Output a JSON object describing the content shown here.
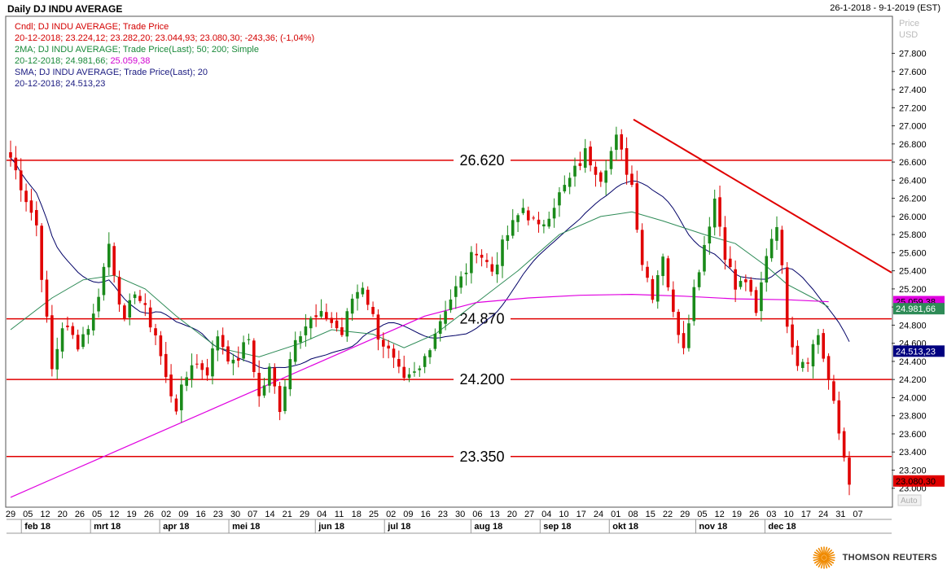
{
  "header": {
    "title": "Daily DJ INDU AVERAGE",
    "date_range": "26-1-2018 - 9-1-2019 (EST)"
  },
  "legend": [
    {
      "text": "Cndl; DJ INDU AVERAGE; Trade Price",
      "color": "#d40000"
    },
    {
      "text": "20-12-2018; 23.224,12; 23.282,20; 23.044,93; 23.080,30; -243,36; (-1,04%)",
      "color": "#d40000"
    },
    {
      "text": "2MA; DJ INDU AVERAGE; Trade Price(Last);  50; 200; Simple",
      "color": "#1a8a3a"
    },
    {
      "text": "20-12-2018; 24.981,66; 25.059,38",
      "color": "#1a8a3a",
      "highlight": "25.059,38",
      "highlight_color": "#d100d1"
    },
    {
      "text": "SMA; DJ INDU AVERAGE; Trade Price(Last);  20",
      "color": "#1a1a80"
    },
    {
      "text": "20-12-2018; 24.513,23",
      "color": "#1a1a80"
    }
  ],
  "axis": {
    "price_label": "Price",
    "currency_label": "USD",
    "auto_label": "Auto"
  },
  "brand": {
    "name": "THOMSON REUTERS"
  },
  "colors": {
    "up": "#1a8a1a",
    "down": "#e00000",
    "sma20": "#000066",
    "ma50": "#2e8b57",
    "ma200": "#e000e0",
    "level": "#e00000"
  },
  "chart_data": {
    "type": "candlestick",
    "title": "Daily DJ INDU AVERAGE",
    "ylim": [
      22800,
      28200
    ],
    "y_ticks": [
      "23.000",
      "23.200",
      "23.400",
      "23.600",
      "23.800",
      "24.000",
      "24.200",
      "24.400",
      "24.600",
      "24.800",
      "25.000",
      "25.200",
      "25.400",
      "25.600",
      "25.800",
      "26.000",
      "26.200",
      "26.400",
      "26.600",
      "26.800",
      "27.000",
      "27.200",
      "27.400",
      "27.600",
      "27.800"
    ],
    "day_labels": [
      "29",
      "05",
      "12",
      "20",
      "26",
      "05",
      "12",
      "19",
      "26",
      "02",
      "09",
      "16",
      "23",
      "30",
      "07",
      "14",
      "21",
      "29",
      "04",
      "11",
      "18",
      "25",
      "02",
      "09",
      "16",
      "23",
      "30",
      "06",
      "13",
      "20",
      "27",
      "04",
      "10",
      "17",
      "24",
      "01",
      "08",
      "15",
      "22",
      "29",
      "05",
      "12",
      "19",
      "26",
      "03",
      "10",
      "17",
      "24",
      "31",
      "07"
    ],
    "month_labels": [
      {
        "label": "feb 18",
        "at": "05"
      },
      {
        "label": "mrt 18",
        "at": "05"
      },
      {
        "label": "apr 18",
        "at": "02"
      },
      {
        "label": "mei 18",
        "at": "30"
      },
      {
        "label": "jun 18",
        "at": "04"
      },
      {
        "label": "jul 18",
        "at": "02"
      },
      {
        "label": "aug 18",
        "at": "30"
      },
      {
        "label": "sep 18",
        "at": "27"
      },
      {
        "label": "okt 18",
        "at": "01"
      },
      {
        "label": "nov 18",
        "at": "29"
      },
      {
        "label": "dec 18",
        "at": "03"
      }
    ],
    "levels": [
      {
        "value": 26620,
        "label": "26.620"
      },
      {
        "value": 24870,
        "label": "24.870"
      },
      {
        "value": 24200,
        "label": "24.200"
      },
      {
        "value": 23350,
        "label": "23.350"
      }
    ],
    "trendline": {
      "from": {
        "x": "2018-09-21",
        "y": 27070
      },
      "to": {
        "x": "2019-01-09",
        "y": 25380
      }
    },
    "last_values": [
      {
        "name": "ma200",
        "label": "25.059,38",
        "value": 25059.38,
        "bg": "#e000e0",
        "fg": "#000000"
      },
      {
        "name": "ma50",
        "label": "24.981,66",
        "value": 24981.66,
        "bg": "#2e8b57",
        "fg": "#ffffff"
      },
      {
        "name": "sma20",
        "label": "24.513,23",
        "value": 24513.23,
        "bg": "#000080",
        "fg": "#ffffff"
      },
      {
        "name": "close",
        "label": "23.080,30",
        "value": 23080.3,
        "bg": "#e00000",
        "fg": "#000000"
      }
    ],
    "anchors": [
      [
        0,
        26650
      ],
      [
        3,
        26200
      ],
      [
        5,
        25900
      ],
      [
        8,
        24300
      ],
      [
        10,
        24800
      ],
      [
        13,
        24600
      ],
      [
        16,
        24900
      ],
      [
        19,
        25700
      ],
      [
        22,
        24800
      ],
      [
        24,
        25200
      ],
      [
        28,
        24700
      ],
      [
        30,
        24200
      ],
      [
        32,
        23900
      ],
      [
        35,
        24400
      ],
      [
        38,
        24300
      ],
      [
        40,
        24700
      ],
      [
        43,
        24350
      ],
      [
        46,
        24650
      ],
      [
        48,
        24000
      ],
      [
        50,
        24300
      ],
      [
        52,
        23900
      ],
      [
        55,
        24700
      ],
      [
        58,
        24850
      ],
      [
        61,
        24900
      ],
      [
        64,
        24700
      ],
      [
        66,
        25100
      ],
      [
        68,
        25250
      ],
      [
        71,
        24700
      ],
      [
        73,
        24500
      ],
      [
        76,
        24150
      ],
      [
        79,
        24300
      ],
      [
        81,
        24600
      ],
      [
        84,
        25000
      ],
      [
        87,
        25300
      ],
      [
        90,
        25650
      ],
      [
        93,
        25400
      ],
      [
        96,
        25800
      ],
      [
        99,
        26100
      ],
      [
        102,
        25850
      ],
      [
        105,
        26150
      ],
      [
        108,
        26400
      ],
      [
        111,
        26700
      ],
      [
        114,
        26450
      ],
      [
        117,
        26850
      ],
      [
        120,
        26350
      ],
      [
        122,
        25500
      ],
      [
        124,
        25150
      ],
      [
        126,
        25600
      ],
      [
        128,
        24900
      ],
      [
        130,
        24600
      ],
      [
        132,
        25200
      ],
      [
        134,
        25700
      ],
      [
        136,
        26200
      ],
      [
        138,
        25600
      ],
      [
        140,
        25200
      ],
      [
        142,
        25300
      ],
      [
        144,
        24900
      ],
      [
        146,
        25600
      ],
      [
        148,
        25950
      ],
      [
        150,
        24850
      ],
      [
        152,
        24400
      ],
      [
        154,
        24450
      ],
      [
        156,
        24700
      ],
      [
        158,
        24200
      ],
      [
        160,
        23600
      ],
      [
        162,
        23100
      ]
    ],
    "ma50_pts": [
      [
        0,
        24750
      ],
      [
        8,
        25100
      ],
      [
        14,
        25300
      ],
      [
        20,
        25350
      ],
      [
        26,
        25200
      ],
      [
        32,
        24900
      ],
      [
        40,
        24550
      ],
      [
        48,
        24450
      ],
      [
        56,
        24600
      ],
      [
        62,
        24750
      ],
      [
        70,
        24700
      ],
      [
        76,
        24550
      ],
      [
        82,
        24700
      ],
      [
        90,
        25050
      ],
      [
        98,
        25400
      ],
      [
        106,
        25800
      ],
      [
        114,
        26000
      ],
      [
        120,
        26050
      ],
      [
        126,
        25950
      ],
      [
        134,
        25800
      ],
      [
        140,
        25700
      ],
      [
        146,
        25450
      ],
      [
        150,
        25250
      ],
      [
        155,
        25100
      ],
      [
        158,
        25000
      ]
    ],
    "ma200_pts": [
      [
        0,
        22900
      ],
      [
        10,
        23150
      ],
      [
        20,
        23400
      ],
      [
        30,
        23650
      ],
      [
        40,
        23900
      ],
      [
        50,
        24150
      ],
      [
        60,
        24400
      ],
      [
        70,
        24650
      ],
      [
        80,
        24900
      ],
      [
        90,
        25050
      ],
      [
        100,
        25100
      ],
      [
        110,
        25130
      ],
      [
        120,
        25140
      ],
      [
        130,
        25120
      ],
      [
        140,
        25090
      ],
      [
        150,
        25080
      ],
      [
        158,
        25059
      ]
    ]
  }
}
